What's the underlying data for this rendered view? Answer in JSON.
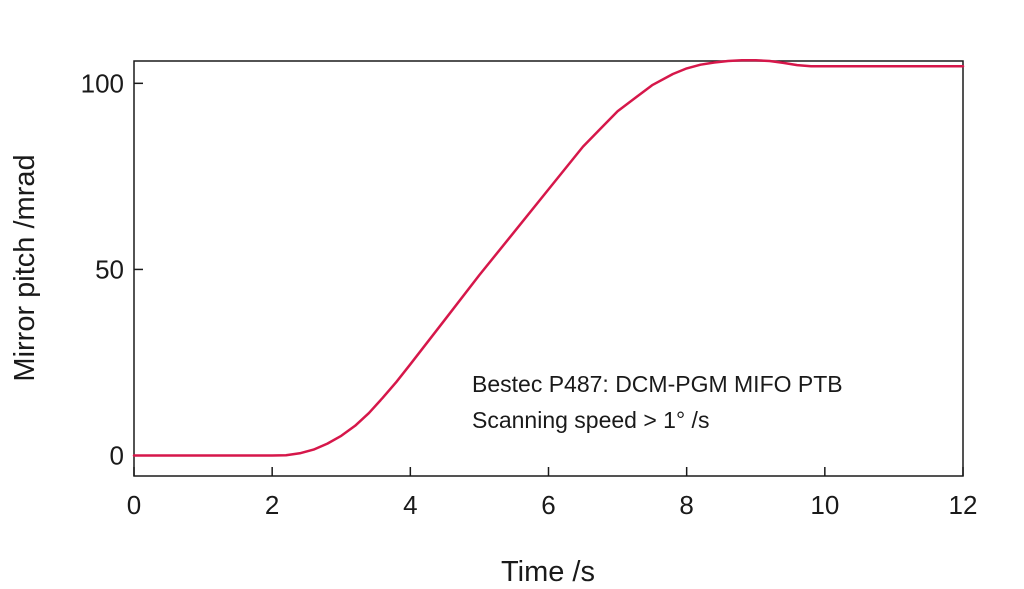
{
  "chart_data": {
    "type": "line",
    "title": "",
    "xlabel": "Time /s",
    "ylabel": "Mirror pitch /mrad",
    "xlim": [
      0,
      12
    ],
    "ylim": [
      -5.5,
      106
    ],
    "xticks": [
      0,
      2,
      4,
      6,
      8,
      10,
      12
    ],
    "yticks": [
      0,
      50,
      100
    ],
    "grid": false,
    "annotation": [
      "Bestec P487: DCM-PGM MIFO PTB",
      "Scanning speed > 1° /s"
    ],
    "series": [
      {
        "color": "#d6174a",
        "x": [
          0,
          1,
          2,
          2.2,
          2.4,
          2.6,
          2.8,
          3.0,
          3.2,
          3.4,
          3.6,
          3.8,
          4.0,
          4.5,
          5.0,
          5.5,
          6.0,
          6.5,
          7.0,
          7.5,
          7.8,
          8.0,
          8.2,
          8.4,
          8.6,
          8.8,
          9.0,
          9.2,
          9.4,
          9.6,
          9.8,
          10,
          11,
          12
        ],
        "y": [
          0,
          0,
          0,
          0.1,
          0.6,
          1.6,
          3.2,
          5.3,
          8.0,
          11.4,
          15.5,
          19.8,
          24.5,
          36.5,
          48.5,
          60.0,
          71.5,
          83.0,
          92.5,
          99.5,
          102.5,
          104.0,
          105.0,
          105.6,
          106.0,
          106.2,
          106.2,
          106.0,
          105.5,
          104.9,
          104.6,
          104.6,
          104.6,
          104.6
        ]
      }
    ]
  }
}
